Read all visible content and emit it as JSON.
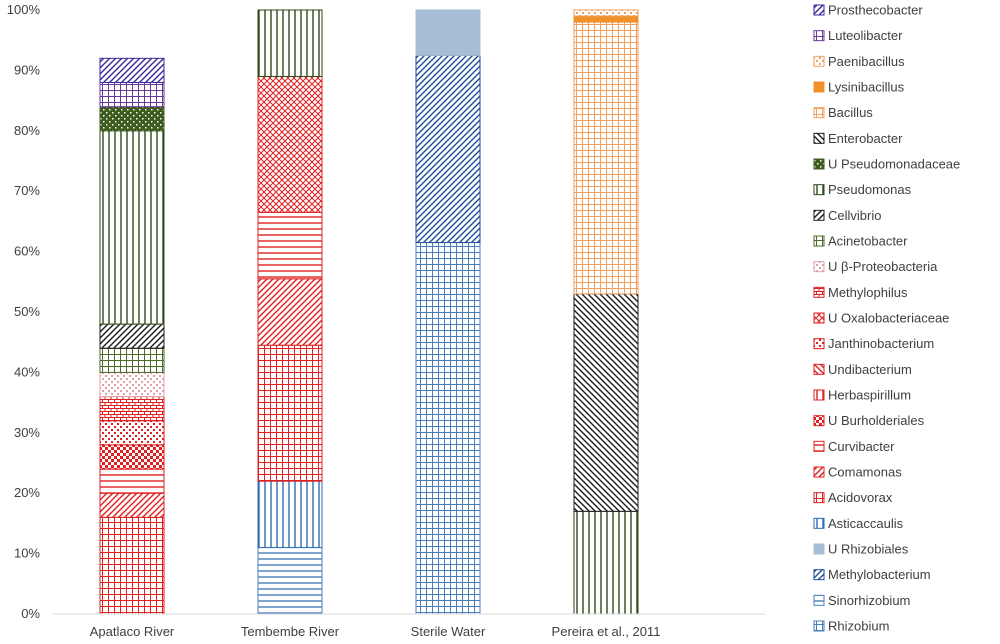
{
  "chart_data": {
    "type": "bar",
    "stacked": true,
    "percent": true,
    "title": "",
    "xlabel": "",
    "ylabel": "",
    "ylim": [
      0,
      100
    ],
    "yticks": [
      "0%",
      "10%",
      "20%",
      "30%",
      "40%",
      "50%",
      "60%",
      "70%",
      "80%",
      "90%",
      "100%"
    ],
    "categories": [
      "Apatlaco River",
      "Tembembe River",
      "Sterile Water",
      "Pereira et al., 2011"
    ],
    "grid": false,
    "legend_position": "right",
    "series": [
      {
        "name": "Rhizobium",
        "color": "#4a7ebb",
        "pattern": "grid",
        "values": [
          0,
          0,
          61.5,
          0
        ]
      },
      {
        "name": "Sinorhizobium",
        "color": "#4a7ebb",
        "pattern": "hlines",
        "values": [
          0,
          11,
          0,
          0
        ]
      },
      {
        "name": "Methylobacterium",
        "color": "#1f4e9a",
        "pattern": "diag-up",
        "values": [
          0,
          0,
          31,
          0
        ]
      },
      {
        "name": "U Rhizobiales",
        "color": "#a6bfd6",
        "pattern": "solid",
        "values": [
          0,
          0,
          7.5,
          0
        ]
      },
      {
        "name": "Asticaccaulis",
        "color": "#2e6db5",
        "pattern": "vlines",
        "values": [
          0,
          11,
          0,
          0
        ]
      },
      {
        "name": "Acidovorax",
        "color": "#e02020",
        "pattern": "grid",
        "values": [
          16,
          22.5,
          0,
          0
        ]
      },
      {
        "name": "Comamonas",
        "color": "#e02020",
        "pattern": "diag-up",
        "values": [
          4,
          11,
          0,
          0
        ]
      },
      {
        "name": "Curvibacter",
        "color": "#e02020",
        "pattern": "hlines",
        "values": [
          4,
          11,
          0,
          0
        ]
      },
      {
        "name": "U Burholderiales",
        "color": "#e02020",
        "pattern": "check",
        "values": [
          4,
          0,
          0,
          0
        ]
      },
      {
        "name": "Herbaspirillum",
        "color": "#e02020",
        "pattern": "vlines",
        "values": [
          0,
          0,
          0,
          0
        ]
      },
      {
        "name": "Undibacterium",
        "color": "#e02020",
        "pattern": "diag-down",
        "values": [
          0,
          0,
          0,
          0
        ]
      },
      {
        "name": "Janthinobacterium",
        "color": "#e02020",
        "pattern": "dots",
        "values": [
          4,
          0,
          0,
          0
        ]
      },
      {
        "name": "U Oxalobacteriaceae",
        "color": "#e02020",
        "pattern": "cross",
        "values": [
          0,
          22.5,
          0,
          0
        ]
      },
      {
        "name": "Methylophilus",
        "color": "#e02020",
        "pattern": "brick",
        "values": [
          4,
          0,
          0,
          0
        ]
      },
      {
        "name": "U β-Proteobacteria",
        "color": "#e4a0a8",
        "pattern": "dots",
        "values": [
          4,
          0,
          0,
          0
        ]
      },
      {
        "name": "Acinetobacter",
        "color": "#4e6b2a",
        "pattern": "grid",
        "values": [
          4,
          0,
          0,
          0
        ]
      },
      {
        "name": "Cellvibrio",
        "color": "#1e1e1e",
        "pattern": "diag-up",
        "values": [
          4,
          0,
          0,
          0
        ]
      },
      {
        "name": "Pseudomonas",
        "color": "#2e4a1a",
        "pattern": "vlines",
        "values": [
          32,
          11,
          0,
          17
        ]
      },
      {
        "name": "U Pseudomonadaceae",
        "color": "#3d5c1e",
        "pattern": "dots-dark",
        "values": [
          4,
          0,
          0,
          0
        ]
      },
      {
        "name": "Enterobacter",
        "color": "#1e1e1e",
        "pattern": "diag-down",
        "values": [
          0,
          0,
          0,
          36
        ]
      },
      {
        "name": "Bacillus",
        "color": "#f0a060",
        "pattern": "grid",
        "values": [
          0,
          0,
          0,
          45
        ]
      },
      {
        "name": "Lysinibacillus",
        "color": "#f0902a",
        "pattern": "solid",
        "values": [
          0,
          0,
          0,
          1
        ]
      },
      {
        "name": "Paenibacillus",
        "color": "#f0a060",
        "pattern": "dots",
        "values": [
          0,
          0,
          0,
          1
        ]
      },
      {
        "name": "Luteolibacter",
        "color": "#6a3a9a",
        "pattern": "grid",
        "values": [
          4,
          0,
          0,
          0
        ]
      },
      {
        "name": "Prosthecobacter",
        "color": "#3a2aa0",
        "pattern": "diag-up",
        "values": [
          4,
          0,
          0,
          0
        ]
      }
    ]
  }
}
